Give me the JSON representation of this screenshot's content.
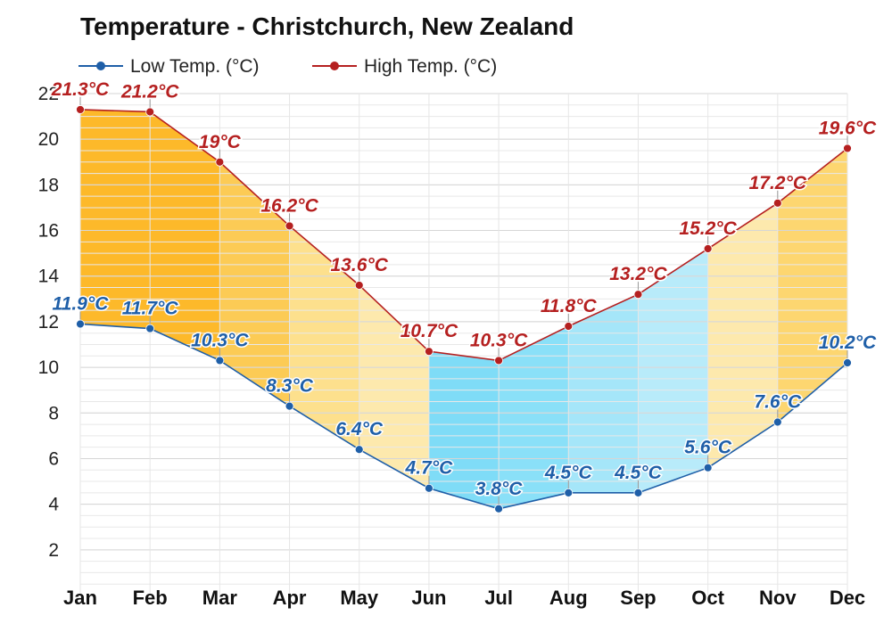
{
  "chart_data": {
    "type": "line",
    "title": "Temperature - Christchurch, New Zealand",
    "categories": [
      "Jan",
      "Feb",
      "Mar",
      "Apr",
      "May",
      "Jun",
      "Jul",
      "Aug",
      "Sep",
      "Oct",
      "Nov",
      "Dec"
    ],
    "series": [
      {
        "name": "Low Temp. (°C)",
        "color": "#1f5fa8",
        "values": [
          11.9,
          11.7,
          10.3,
          8.3,
          6.4,
          4.7,
          3.8,
          4.5,
          4.5,
          5.6,
          7.6,
          10.2
        ],
        "labels": [
          "11.9°C",
          "11.7°C",
          "10.3°C",
          "8.3°C",
          "6.4°C",
          "4.7°C",
          "3.8°C",
          "4.5°C",
          "4.5°C",
          "5.6°C",
          "7.6°C",
          "10.2°C"
        ]
      },
      {
        "name": "High Temp. (°C)",
        "color": "#b52020",
        "values": [
          21.3,
          21.2,
          19,
          16.2,
          13.6,
          10.7,
          10.3,
          11.8,
          13.2,
          15.2,
          17.2,
          19.6
        ],
        "labels": [
          "21.3°C",
          "21.2°C",
          "19°C",
          "16.2°C",
          "13.6°C",
          "10.7°C",
          "10.3°C",
          "11.8°C",
          "13.2°C",
          "15.2°C",
          "17.2°C",
          "19.6°C"
        ]
      }
    ],
    "y_ticks": [
      "2",
      "4",
      "6",
      "8",
      "10",
      "12",
      "14",
      "16",
      "18",
      "20",
      "22"
    ],
    "ylim": [
      0,
      22
    ],
    "xlabel": "",
    "ylabel": "",
    "grid": true,
    "legend_position": "top-left",
    "band_colors": [
      "#fdb92a",
      "#fdb92a",
      "#fccb55",
      "#fde08d",
      "#fde9ad",
      "#7fdcf7",
      "#8ae0f8",
      "#a5e6f9",
      "#b8ebfa",
      "#fde9ad",
      "#fdd670",
      "#fdbf34"
    ]
  }
}
